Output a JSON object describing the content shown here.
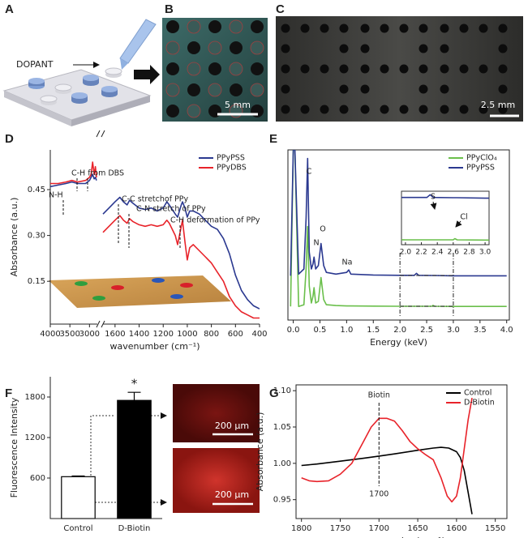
{
  "panel_labels": [
    "A",
    "B",
    "C",
    "D",
    "E",
    "F",
    "G"
  ],
  "schematic": {
    "label": "DOPANT"
  },
  "photos": [
    {
      "scale": "5 mm"
    },
    {
      "scale": "2.5 mm"
    },
    {
      "scale": "200 µm"
    },
    {
      "scale": "200 µm"
    }
  ],
  "chart_data": [
    {
      "type": "line",
      "ylabel": "Absorbance (a.u.)",
      "xlabel": "wavenumber (cm⁻¹)",
      "x_segments": [
        {
          "xlim": [
            4000,
            2800
          ],
          "xticks": [
            4000,
            3500,
            3000
          ]
        },
        {
          "xlim": [
            1700,
            400
          ],
          "xticks": [
            1600,
            1400,
            1200,
            1000,
            800,
            600,
            400
          ]
        }
      ],
      "ylim": [
        0.01,
        0.58
      ],
      "yticks": [
        0.15,
        {
          "value": 0.3,
          "label": "0.30"
        },
        0.45
      ],
      "legend": "upper right",
      "annotations": [
        "N-H",
        "C-H from DBS",
        "C-C stretchof PPy",
        "C-N stretch of PPy",
        "C-H deformation of PPy"
      ],
      "x": [
        4000,
        3800,
        3600,
        3450,
        3300,
        3100,
        3000,
        2960,
        2920,
        2880,
        2850,
        2820,
        2000,
        1700,
        1650,
        1600,
        1560,
        1530,
        1500,
        1480,
        1450,
        1400,
        1350,
        1300,
        1250,
        1200,
        1170,
        1150,
        1100,
        1080,
        1050,
        1040,
        1020,
        1000,
        980,
        950,
        900,
        850,
        800,
        750,
        700,
        650,
        600,
        550,
        500,
        450,
        400
      ],
      "series": [
        {
          "name": "PPyPSS",
          "color": "#2b3990",
          "values": [
            0.46,
            0.465,
            0.47,
            0.475,
            0.47,
            0.47,
            0.48,
            0.49,
            0.5,
            0.485,
            0.49,
            0.48,
            null,
            0.37,
            0.39,
            0.41,
            0.425,
            0.41,
            0.4,
            0.415,
            0.405,
            0.39,
            0.385,
            0.39,
            0.38,
            0.39,
            0.41,
            0.4,
            0.37,
            0.36,
            0.4,
            0.41,
            0.39,
            0.36,
            0.38,
            0.38,
            0.37,
            0.35,
            0.33,
            0.32,
            0.29,
            0.24,
            0.17,
            0.12,
            0.09,
            0.07,
            0.06
          ]
        },
        {
          "name": "PPyDBS",
          "color": "#e8232a",
          "values": [
            0.47,
            0.47,
            0.475,
            0.48,
            0.475,
            0.48,
            0.49,
            0.5,
            0.54,
            0.5,
            0.525,
            0.49,
            null,
            0.31,
            0.33,
            0.35,
            0.365,
            0.35,
            0.34,
            0.355,
            0.345,
            0.335,
            0.33,
            0.335,
            0.33,
            0.335,
            0.35,
            0.34,
            0.3,
            0.27,
            0.33,
            0.35,
            0.28,
            0.22,
            0.26,
            0.27,
            0.25,
            0.23,
            0.21,
            0.18,
            0.15,
            0.1,
            0.07,
            0.05,
            0.04,
            0.03,
            0.03
          ]
        }
      ]
    },
    {
      "type": "line",
      "xlabel": "Energy (keV)",
      "xlim": [
        -0.1,
        4.05
      ],
      "xticks": [
        {
          "value": 0,
          "label": "0.0"
        },
        0.5,
        {
          "value": 1,
          "label": "1.0"
        },
        1.5,
        {
          "value": 2,
          "label": "2.0"
        },
        2.5,
        {
          "value": 3,
          "label": "3.0"
        },
        3.5,
        {
          "value": 4,
          "label": "4.0"
        }
      ],
      "ylim": [
        0,
        100
      ],
      "legend": "upper right",
      "annotations": [
        "C",
        "N",
        "O",
        "Na"
      ],
      "x": [
        -0.05,
        0,
        0.03,
        0.1,
        0.2,
        0.24,
        0.27,
        0.3,
        0.34,
        0.37,
        0.39,
        0.42,
        0.47,
        0.52,
        0.57,
        0.62,
        0.8,
        1.0,
        1.04,
        1.08,
        1.5,
        2.0,
        2.27,
        2.31,
        2.35,
        2.6,
        2.62,
        2.65,
        3.0,
        4.0
      ],
      "series": [
        {
          "name": "PPyClO₄",
          "color": "#6abf4b",
          "values": [
            8,
            100,
            100,
            8,
            9,
            30,
            55,
            20,
            10,
            14,
            19,
            10,
            11,
            25,
            12,
            9,
            8.5,
            8.3,
            8.3,
            8.3,
            8.2,
            8.1,
            8.1,
            8.1,
            8.1,
            8.1,
            8.6,
            8.1,
            8,
            8
          ]
        },
        {
          "name": "PPyPSS",
          "color": "#2b3990",
          "values": [
            26,
            100,
            100,
            27,
            30,
            60,
            95,
            40,
            30,
            33,
            37,
            30,
            32,
            45,
            32,
            28,
            27,
            28,
            29.5,
            27,
            26.5,
            26.3,
            26.3,
            27.5,
            26.3,
            26.2,
            26.2,
            26.2,
            26,
            26
          ]
        }
      ],
      "inset": {
        "xlim": [
          1.95,
          3.05
        ],
        "ylim": [
          6,
          29
        ],
        "xticks": [
          {
            "value": 2,
            "label": "2.0"
          },
          2.2,
          2.4,
          2.6,
          2.8,
          {
            "value": 3,
            "label": "3.0"
          }
        ],
        "annotations": [
          "S",
          "Cl"
        ]
      }
    },
    {
      "type": "bar",
      "ylabel": "Fluorescence Intensity",
      "categories": [
        "Control",
        "D-Biotin"
      ],
      "values": [
        620,
        1750
      ],
      "errors": [
        10,
        120
      ],
      "colors": [
        "#ffffff",
        "#000000"
      ],
      "ylim": [
        0,
        2100
      ],
      "yticks": [
        600,
        1200,
        1800
      ],
      "annotation": "*"
    },
    {
      "type": "line",
      "ylabel": "Absorbance (a.u.)",
      "xlabel": "wavenumber(cm⁻¹)",
      "xlim": [
        1807,
        1535
      ],
      "xticks": [
        1800,
        1750,
        1700,
        1650,
        1600,
        1550
      ],
      "ylim": [
        0.924,
        1.108
      ],
      "yticks": [
        0.95,
        {
          "value": 1,
          "label": "1.00"
        },
        1.05,
        {
          "value": 1.1,
          "label": "1.10"
        }
      ],
      "legend": "upper right",
      "annotations": [
        "Biotin"
      ],
      "peak_x": 1700,
      "series": [
        {
          "name": "Control",
          "color": "#000000",
          "x": [
            1800,
            1780,
            1750,
            1720,
            1700,
            1680,
            1650,
            1630,
            1620,
            1610,
            1600,
            1595,
            1590,
            1585,
            1580
          ],
          "values": [
            0.997,
            0.999,
            1.003,
            1.007,
            1.01,
            1.013,
            1.018,
            1.021,
            1.022,
            1.021,
            1.016,
            1.008,
            0.99,
            0.96,
            0.93
          ]
        },
        {
          "name": "D-Biotin",
          "color": "#e8232a",
          "x": [
            1800,
            1790,
            1780,
            1765,
            1750,
            1735,
            1720,
            1710,
            1700,
            1690,
            1680,
            1670,
            1660,
            1650,
            1640,
            1630,
            1620,
            1612,
            1606,
            1600,
            1595,
            1590,
            1585,
            1580
          ],
          "values": [
            0.98,
            0.976,
            0.975,
            0.976,
            0.985,
            1.0,
            1.03,
            1.05,
            1.062,
            1.062,
            1.058,
            1.045,
            1.03,
            1.02,
            1.012,
            1.005,
            0.98,
            0.955,
            0.947,
            0.955,
            0.98,
            1.02,
            1.06,
            1.09
          ]
        }
      ]
    }
  ]
}
